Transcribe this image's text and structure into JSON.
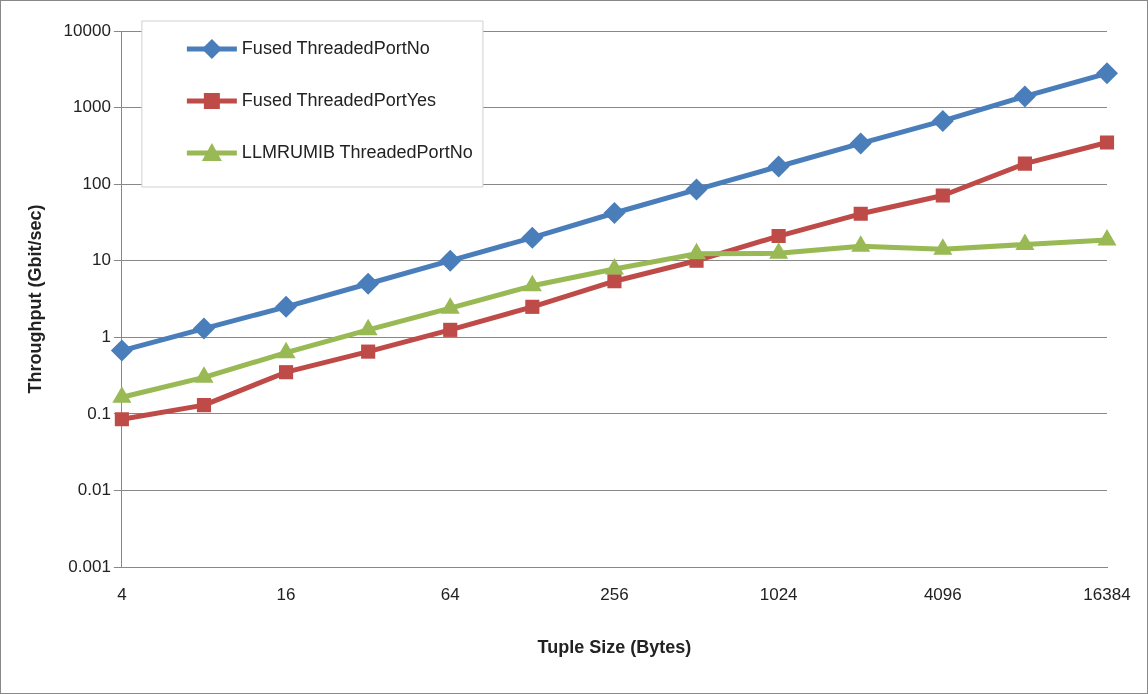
{
  "chart_data": {
    "type": "line",
    "xlabel": "Tuple Size (Bytes)",
    "ylabel": "Throughput (Gbit/sec)",
    "categories": [
      "4",
      null,
      "16",
      null,
      "64",
      null,
      "256",
      null,
      "1024",
      null,
      "4096",
      null,
      "16384"
    ],
    "series": [
      {
        "name": "Fused ThreadedPortNo",
        "color": "#4a7ebb",
        "marker": "diamond",
        "values": [
          0.67,
          1.3,
          2.5,
          5,
          10,
          20,
          42,
          85,
          170,
          340,
          670,
          1400,
          2800
        ]
      },
      {
        "name": "Fused ThreadedPortYes",
        "color": "#be4b48",
        "marker": "square",
        "values": [
          0.085,
          0.13,
          0.35,
          0.65,
          1.25,
          2.5,
          5.4,
          10,
          21,
          41,
          71,
          185,
          350
        ]
      },
      {
        "name": "LLMRUMIB ThreadedPortNo",
        "color": "#98b954",
        "marker": "triangle",
        "values": [
          0.165,
          0.3,
          0.63,
          1.25,
          2.4,
          4.7,
          7.8,
          12.3,
          12.5,
          15.5,
          14.1,
          16.3,
          18.6
        ]
      }
    ],
    "log": "y",
    "ylim": [
      0.001,
      10000
    ],
    "yticks": [
      0.001,
      0.01,
      0.1,
      1,
      10,
      100,
      1000,
      10000
    ],
    "grid": "y",
    "legend": "top left",
    "line_style": "solid"
  }
}
